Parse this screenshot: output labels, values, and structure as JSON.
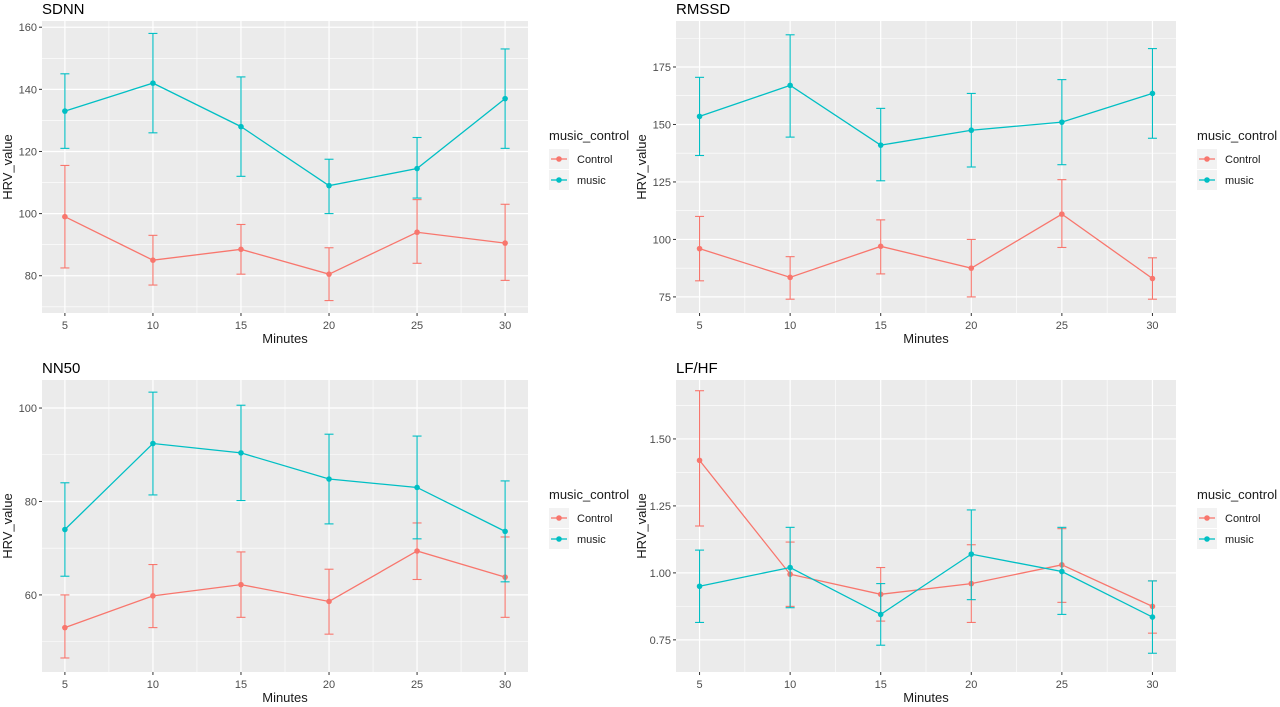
{
  "legend_title": "music_control",
  "legend_entries": [
    "Control",
    "music"
  ],
  "colors": {
    "Control": "#f8766d",
    "music": "#00bfc4",
    "panel_bg": "#ebebeb",
    "grid": "#ffffff"
  },
  "chart_data": [
    {
      "type": "line",
      "title": "SDNN",
      "xlabel": "Minutes",
      "ylabel": "HRV_value",
      "x": [
        5,
        10,
        15,
        20,
        25,
        30
      ],
      "xlim": [
        3.7,
        31.3
      ],
      "ylim": [
        68,
        162
      ],
      "yticks": [
        80,
        100,
        120,
        140,
        160
      ],
      "ytick_labels": [
        "80",
        "100",
        "120",
        "140",
        "160"
      ],
      "legend": "right",
      "grid": true,
      "series": [
        {
          "name": "Control",
          "values": [
            99,
            85,
            88.5,
            80.5,
            94,
            90.5
          ],
          "lower": [
            82.5,
            77,
            80.5,
            72,
            84,
            78.5
          ],
          "upper": [
            115.5,
            93,
            96.5,
            89,
            104.5,
            103
          ]
        },
        {
          "name": "music",
          "values": [
            133,
            142,
            128,
            109,
            114.5,
            137
          ],
          "lower": [
            121,
            126,
            112,
            100,
            105,
            121
          ],
          "upper": [
            145,
            158,
            144,
            117.5,
            124.5,
            153
          ]
        }
      ]
    },
    {
      "type": "line",
      "title": "RMSSD",
      "xlabel": "Minutes",
      "ylabel": "HRV_value",
      "x": [
        5,
        10,
        15,
        20,
        25,
        30
      ],
      "xlim": [
        3.7,
        31.3
      ],
      "ylim": [
        68,
        195
      ],
      "yticks": [
        75,
        100,
        125,
        150,
        175
      ],
      "ytick_labels": [
        "75",
        "100",
        "125",
        "150",
        "175"
      ],
      "legend": "right",
      "grid": true,
      "series": [
        {
          "name": "Control",
          "values": [
            96,
            83.5,
            97,
            87.5,
            111,
            83
          ],
          "lower": [
            82,
            74,
            85,
            75,
            96.5,
            74
          ],
          "upper": [
            110,
            92.5,
            108.5,
            100,
            126,
            92
          ]
        },
        {
          "name": "music",
          "values": [
            153.5,
            167,
            141,
            147.5,
            151,
            163.5
          ],
          "lower": [
            136.5,
            144.5,
            125.5,
            131.5,
            132.5,
            144
          ],
          "upper": [
            170.5,
            189,
            157,
            163.5,
            169.5,
            183
          ]
        }
      ]
    },
    {
      "type": "line",
      "title": "NN50",
      "xlabel": "Minutes",
      "ylabel": "HRV_value",
      "x": [
        5,
        10,
        15,
        20,
        25,
        30
      ],
      "xlim": [
        3.7,
        31.3
      ],
      "ylim": [
        43.5,
        106
      ],
      "yticks": [
        60,
        80,
        100
      ],
      "ytick_labels": [
        "60",
        "80",
        "100"
      ],
      "legend": "right",
      "grid": true,
      "series": [
        {
          "name": "Control",
          "values": [
            53,
            59.8,
            62.2,
            58.6,
            69.4,
            63.8
          ],
          "lower": [
            46.5,
            53,
            55.2,
            51.6,
            63.3,
            55.2
          ],
          "upper": [
            60,
            66.5,
            69.2,
            65.5,
            75.4,
            72.4
          ]
        },
        {
          "name": "music",
          "values": [
            74,
            92.4,
            90.4,
            84.8,
            83,
            73.6
          ],
          "lower": [
            64,
            81.4,
            80.2,
            75.2,
            72,
            62.8
          ],
          "upper": [
            84,
            103.4,
            100.6,
            94.4,
            94,
            84.4
          ]
        }
      ]
    },
    {
      "type": "line",
      "title": "LF/HF",
      "xlabel": "Minutes",
      "ylabel": "HRV_value",
      "x": [
        5,
        10,
        15,
        20,
        25,
        30
      ],
      "xlim": [
        3.7,
        31.3
      ],
      "ylim": [
        0.63,
        1.72
      ],
      "yticks": [
        0.75,
        1.0,
        1.25,
        1.5
      ],
      "ytick_labels": [
        "0.75",
        "1.00",
        "1.25",
        "1.50"
      ],
      "legend": "right",
      "grid": true,
      "series": [
        {
          "name": "Control",
          "values": [
            1.42,
            0.995,
            0.92,
            0.96,
            1.03,
            0.875
          ],
          "lower": [
            1.175,
            0.875,
            0.82,
            0.815,
            0.89,
            0.775
          ],
          "upper": [
            1.68,
            1.115,
            1.02,
            1.105,
            1.165,
            0.97
          ]
        },
        {
          "name": "music",
          "values": [
            0.95,
            1.02,
            0.845,
            1.07,
            1.005,
            0.835
          ],
          "lower": [
            0.815,
            0.87,
            0.73,
            0.9,
            0.845,
            0.7
          ],
          "upper": [
            1.085,
            1.17,
            0.96,
            1.235,
            1.17,
            0.97
          ]
        }
      ]
    }
  ]
}
